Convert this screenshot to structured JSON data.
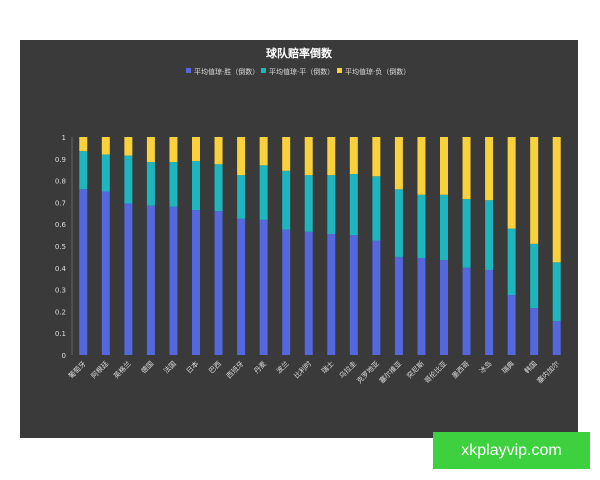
{
  "chart_data": {
    "type": "bar",
    "stacked": true,
    "title": "球队赔率倒数",
    "legend": {
      "position": "top-center"
    },
    "ylim": [
      0,
      1
    ],
    "yticks": [
      "0",
      "0.1",
      "0.2",
      "0.3",
      "0.4",
      "0.5",
      "0.6",
      "0.7",
      "0.8",
      "0.9",
      "1"
    ],
    "categories": [
      "葡萄牙",
      "阿根廷",
      "英格兰",
      "德国",
      "法国",
      "日本",
      "巴西",
      "西班牙",
      "丹麦",
      "波兰",
      "比利时",
      "瑞士",
      "乌拉圭",
      "克罗地亚",
      "塞尔维亚",
      "突尼斯",
      "哥伦比亚",
      "墨西哥",
      "冰岛",
      "瑞典",
      "韩国",
      "塞内加尔"
    ],
    "series": [
      {
        "name": "平均值琼·胜（倒数）",
        "color": "#5467dd",
        "values": [
          0.76,
          0.75,
          0.695,
          0.685,
          0.68,
          0.665,
          0.66,
          0.625,
          0.62,
          0.575,
          0.565,
          0.555,
          0.55,
          0.525,
          0.45,
          0.445,
          0.435,
          0.4,
          0.39,
          0.275,
          0.215,
          0.155
        ]
      },
      {
        "name": "平均值琼·平（倒数）",
        "color": "#1fb5bf",
        "values": [
          0.175,
          0.17,
          0.22,
          0.2,
          0.205,
          0.225,
          0.215,
          0.2,
          0.25,
          0.27,
          0.26,
          0.27,
          0.28,
          0.295,
          0.31,
          0.29,
          0.3,
          0.315,
          0.32,
          0.305,
          0.295,
          0.27
        ]
      },
      {
        "name": "平均值琼·负（倒数）",
        "color": "#f9d13c",
        "values": [
          0.065,
          0.08,
          0.085,
          0.115,
          0.115,
          0.11,
          0.125,
          0.175,
          0.13,
          0.155,
          0.175,
          0.175,
          0.17,
          0.18,
          0.24,
          0.265,
          0.265,
          0.285,
          0.29,
          0.42,
          0.49,
          0.575
        ]
      }
    ]
  },
  "watermark": "xkplayvip.com"
}
